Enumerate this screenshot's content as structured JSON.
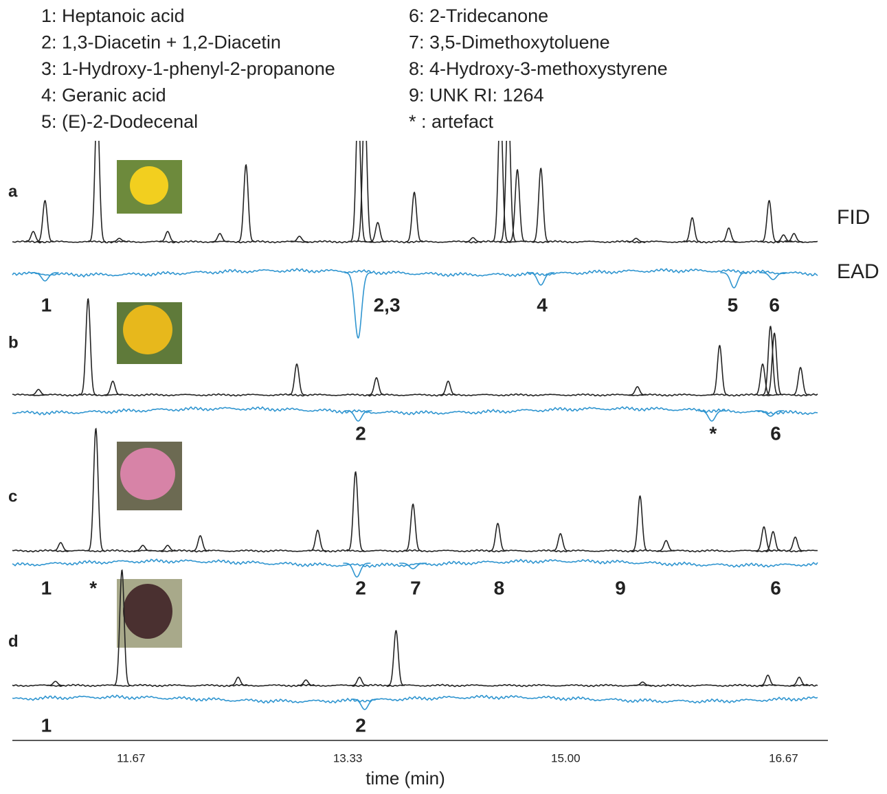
{
  "legend": [
    "1: Heptanoic acid",
    "2: 1,3-Diacetin + 1,2-Diacetin",
    "3: 1-Hydroxy-1-phenyl-2-propanone",
    "4: Geranic acid",
    "5: (E)-2-Dodecenal",
    "6: 2-Tridecanone",
    "7: 3,5-Dimethoxytoluene",
    "8: 4-Hydroxy-3-methoxystyrene",
    "9: UNK RI: 1264",
    "* : artefact"
  ],
  "chart_data": {
    "type": "line",
    "x_label": "time (min)",
    "xlim": [
      10.76,
      17.01
    ],
    "xticks": [
      11.67,
      13.33,
      {
        "value": 15,
        "label": "15.00"
      },
      16.67
    ],
    "trace_labels": [
      "FID",
      "EAD"
    ],
    "fid_color": "#222222",
    "ead_color": "#2f95d0",
    "panels": [
      {
        "name": "a",
        "fid_peaks": {
          "x": [
            10.92,
            11.01,
            11.41,
            11.58,
            11.95,
            12.35,
            12.55,
            12.96,
            13.41,
            13.46,
            13.56,
            13.84,
            14.29,
            14.5,
            14.56,
            14.63,
            14.81,
            15.54,
            15.97,
            16.25,
            16.56,
            16.67,
            16.75
          ],
          "values": [
            15,
            60,
            200,
            5,
            15,
            12,
            112,
            8,
            200,
            200,
            28,
            72,
            6,
            200,
            200,
            105,
            107,
            5,
            35,
            20,
            60,
            10,
            12
          ]
        },
        "ead_dips": {
          "x": [
            11.01,
            13.41,
            14.81,
            16.29,
            16.59
          ],
          "values": [
            12,
            95,
            18,
            22,
            10
          ]
        },
        "peak_labels": {
          "labels": [
            "1",
            "2,3",
            "4",
            "5",
            "6"
          ],
          "x": [
            11.02,
            13.63,
            14.82,
            16.28,
            16.6
          ]
        }
      },
      {
        "name": "b",
        "fid_peaks": {
          "x": [
            10.96,
            11.34,
            11.53,
            12.94,
            13.55,
            14.1,
            15.55,
            16.18,
            16.51,
            16.57,
            16.6,
            16.8
          ],
          "values": [
            8,
            140,
            20,
            45,
            25,
            20,
            12,
            72,
            45,
            100,
            90,
            40
          ]
        },
        "ead_dips": {
          "x": [
            13.41,
            16.12,
            16.57
          ],
          "values": [
            15,
            15,
            8
          ]
        },
        "peak_labels": {
          "labels": [
            "2",
            "*",
            "6"
          ],
          "x": [
            13.43,
            16.13,
            16.61
          ]
        }
      },
      {
        "name": "c",
        "fid_peaks": {
          "x": [
            11.13,
            11.4,
            11.76,
            11.95,
            12.2,
            13.1,
            13.39,
            13.83,
            14.48,
            14.96,
            15.57,
            15.77,
            16.52,
            16.59,
            16.76
          ],
          "values": [
            12,
            178,
            8,
            8,
            22,
            30,
            115,
            68,
            40,
            25,
            80,
            15,
            35,
            28,
            20
          ]
        },
        "ead_dips": {
          "x": [
            13.4,
            13.83
          ],
          "values": [
            20,
            8
          ]
        },
        "peak_labels": {
          "labels": [
            "1",
            "*",
            "2",
            "7",
            "8",
            "9",
            "6"
          ],
          "x": [
            11.02,
            11.38,
            13.43,
            13.85,
            14.49,
            15.42,
            16.61
          ]
        }
      },
      {
        "name": "d",
        "fid_peaks": {
          "x": [
            11.09,
            11.6,
            12.49,
            13.01,
            13.42,
            13.7,
            15.59,
            16.55,
            16.79
          ],
          "values": [
            6,
            168,
            12,
            8,
            12,
            80,
            5,
            15,
            12
          ]
        },
        "ead_dips": {
          "x": [
            13.46
          ],
          "values": [
            15
          ]
        },
        "peak_labels": {
          "labels": [
            "1",
            "2"
          ],
          "x": [
            11.02,
            13.43
          ]
        }
      }
    ]
  }
}
